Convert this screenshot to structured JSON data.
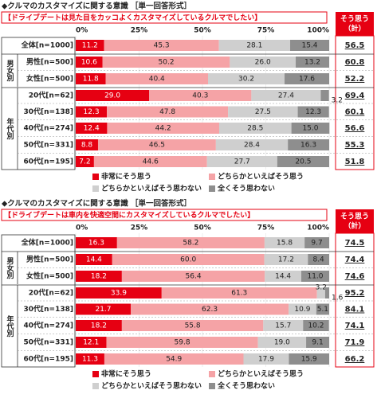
{
  "chart_data": [
    {
      "type": "bar",
      "orientation": "horizontal",
      "stacked": true,
      "title": "◆クルマのカスタマイズに関する意識 ［単一回答形式］",
      "subtitle": "【ドライブデートは見た目をカッコよくカスタマイズしているクルマでしたい】",
      "categories": [
        "全体[n=1000]",
        "男性[n=500]",
        "女性[n=500]",
        "20代[n=62]",
        "30代[n=138]",
        "40代[n=274]",
        "50代[n=331]",
        "60代[n=195]"
      ],
      "groups": [
        "男女別",
        "年代別"
      ],
      "xlim": [
        0,
        100
      ],
      "xticks": [
        {
          "value": 0,
          "label": "0%"
        },
        {
          "value": 25,
          "label": "25%"
        },
        {
          "value": 50,
          "label": "50%"
        },
        {
          "value": 75,
          "label": "75%"
        },
        {
          "value": 100,
          "label": "100%"
        }
      ],
      "series": [
        {
          "name": "非常にそう思う",
          "color": "#e60012",
          "values": [
            11.2,
            10.6,
            11.8,
            29.0,
            12.3,
            12.4,
            8.8,
            7.2
          ],
          "value_labels": [
            "11.2",
            "10.6",
            "11.8",
            "29.0",
            "12.3",
            "12.4",
            "8.8",
            "7.2"
          ]
        },
        {
          "name": "どちらかといえばそう思う",
          "color": "#f5a3a6",
          "values": [
            45.3,
            50.2,
            40.4,
            40.3,
            47.8,
            44.2,
            46.5,
            44.6
          ],
          "value_labels": [
            "45.3",
            "50.2",
            "40.4",
            "40.3",
            "47.8",
            "44.2",
            "46.5",
            "44.6"
          ]
        },
        {
          "name": "どちらかといえばそう思わない",
          "color": "#cfcfcf",
          "values": [
            28.1,
            26.0,
            30.2,
            27.4,
            27.5,
            28.5,
            28.4,
            27.7
          ],
          "value_labels": [
            "28.1",
            "26.0",
            "30.2",
            "27.4",
            "27.5",
            "28.5",
            "28.4",
            "27.7"
          ]
        },
        {
          "name": "全くそう思わない",
          "color": "#8e8e8e",
          "values": [
            15.4,
            13.2,
            17.6,
            3.2,
            12.3,
            15.0,
            16.3,
            20.5
          ],
          "value_labels": [
            "15.4",
            "13.2",
            "17.6",
            "3.2",
            "12.3",
            "15.0",
            "16.3",
            "20.5"
          ]
        }
      ],
      "totals": {
        "label": [
          "そう思う",
          "（計）"
        ],
        "values": [
          56.5,
          60.8,
          52.2,
          69.4,
          60.1,
          56.6,
          55.3,
          51.8
        ]
      }
    },
    {
      "type": "bar",
      "orientation": "horizontal",
      "stacked": true,
      "title": "◆クルマのカスタマイズに関する意識 ［単一回答形式］",
      "subtitle": "【ドライブデートは車内を快適空間にカスタマイズしているクルマでしたい】",
      "categories": [
        "全体[n=1000]",
        "男性[n=500]",
        "女性[n=500]",
        "20代[n=62]",
        "30代[n=138]",
        "40代[n=274]",
        "50代[n=331]",
        "60代[n=195]"
      ],
      "groups": [
        "男女別",
        "年代別"
      ],
      "xlim": [
        0,
        100
      ],
      "xticks": [
        {
          "value": 0,
          "label": "0%"
        },
        {
          "value": 25,
          "label": "25%"
        },
        {
          "value": 50,
          "label": "50%"
        },
        {
          "value": 75,
          "label": "75%"
        },
        {
          "value": 100,
          "label": "100%"
        }
      ],
      "series": [
        {
          "name": "非常にそう思う",
          "color": "#e60012",
          "values": [
            16.3,
            14.4,
            18.2,
            33.9,
            21.7,
            18.2,
            12.1,
            11.3
          ],
          "value_labels": [
            "16.3",
            "14.4",
            "18.2",
            "33.9",
            "21.7",
            "18.2",
            "12.1",
            "11.3"
          ]
        },
        {
          "name": "どちらかといえばそう思う",
          "color": "#f5a3a6",
          "values": [
            58.2,
            60.0,
            56.4,
            61.3,
            62.3,
            55.8,
            59.8,
            54.9
          ],
          "value_labels": [
            "58.2",
            "60.0",
            "56.4",
            "61.3",
            "62.3",
            "55.8",
            "59.8",
            "54.9"
          ]
        },
        {
          "name": "どちらかといえばそう思わない",
          "color": "#cfcfcf",
          "values": [
            15.8,
            17.2,
            14.4,
            3.2,
            10.9,
            15.7,
            19.0,
            17.9
          ],
          "value_labels": [
            "15.8",
            "17.2",
            "14.4",
            "3.2",
            "10.9",
            "15.7",
            "19.0",
            "17.9"
          ]
        },
        {
          "name": "全くそう思わない",
          "color": "#8e8e8e",
          "values": [
            9.7,
            8.4,
            11.0,
            1.6,
            5.1,
            10.2,
            9.1,
            15.9
          ],
          "value_labels": [
            "9.7",
            "8.4",
            "11.0",
            "1.6",
            "5.1",
            "10.2",
            "9.1",
            "15.9"
          ]
        }
      ],
      "totals": {
        "label": [
          "そう思う",
          "（計）"
        ],
        "values": [
          74.5,
          74.4,
          74.6,
          95.2,
          84.1,
          74.1,
          71.9,
          66.2
        ]
      }
    }
  ]
}
